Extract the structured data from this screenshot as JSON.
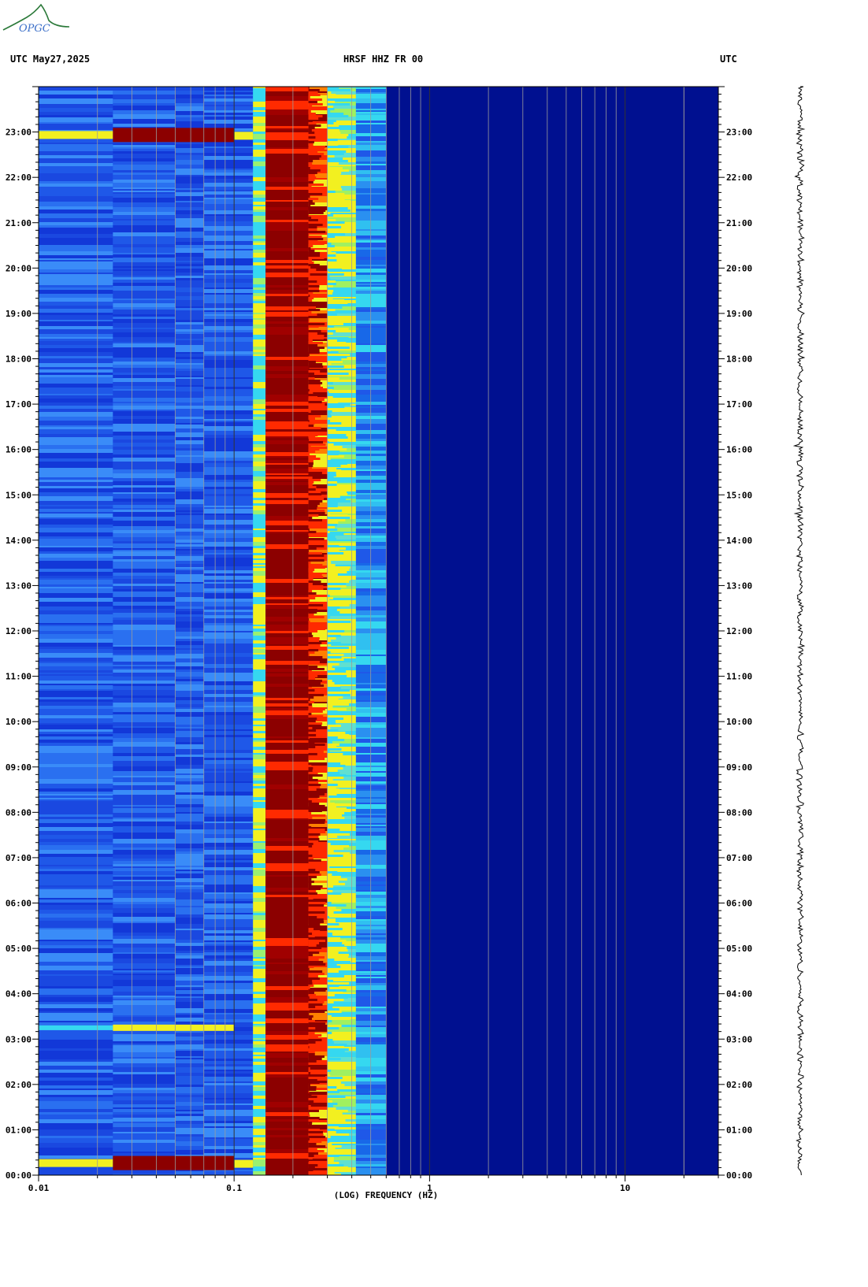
{
  "header": {
    "left": "UTC  May27,2025",
    "center": "HRSF HHZ FR 00",
    "right": "UTC"
  },
  "logo_text": "OPGC",
  "colors": {
    "background": "#0a1ec8",
    "dark_blue": "#001090",
    "mid_blue": "#1f58e8",
    "cyan": "#35d8f0",
    "yellow": "#f2f020",
    "red": "#ff2a00",
    "dark_red": "#8c0000",
    "grid": "#9a9a9a"
  },
  "chart_data": {
    "type": "heatmap",
    "title": "HRSF HHZ FR 00",
    "xlabel": "(LOG) FREQUENCY (HZ)",
    "ylabel": "UTC",
    "x_scale": "log",
    "xlim": [
      0.01,
      30
    ],
    "ylim_hours": [
      0,
      24
    ],
    "x_tick_labels": [
      "0.01",
      "0.1",
      "1",
      "10"
    ],
    "y_tick_labels": [
      "00:00",
      "01:00",
      "02:00",
      "03:00",
      "04:00",
      "05:00",
      "06:00",
      "07:00",
      "08:00",
      "09:00",
      "10:00",
      "11:00",
      "12:00",
      "13:00",
      "14:00",
      "15:00",
      "16:00",
      "17:00",
      "18:00",
      "19:00",
      "20:00",
      "21:00",
      "22:00",
      "23:00"
    ],
    "bands": [
      {
        "f_start": 0.01,
        "f_end": 0.125,
        "level": "blue"
      },
      {
        "f_start": 0.125,
        "f_end": 0.145,
        "level": "cyan-yellow"
      },
      {
        "f_start": 0.145,
        "f_end": 0.24,
        "level": "dark-red"
      },
      {
        "f_start": 0.24,
        "f_end": 0.3,
        "level": "red-yellow"
      },
      {
        "f_start": 0.3,
        "f_end": 0.42,
        "level": "yellow-cyan"
      },
      {
        "f_start": 0.42,
        "f_end": 0.6,
        "level": "cyan-blue"
      },
      {
        "f_start": 0.6,
        "f_end": 30,
        "level": "dark-blue"
      }
    ],
    "events": [
      {
        "time": "00:15",
        "level": "high"
      },
      {
        "time": "03:15",
        "level": "medium"
      },
      {
        "time": "22:55",
        "level": "high"
      }
    ]
  }
}
